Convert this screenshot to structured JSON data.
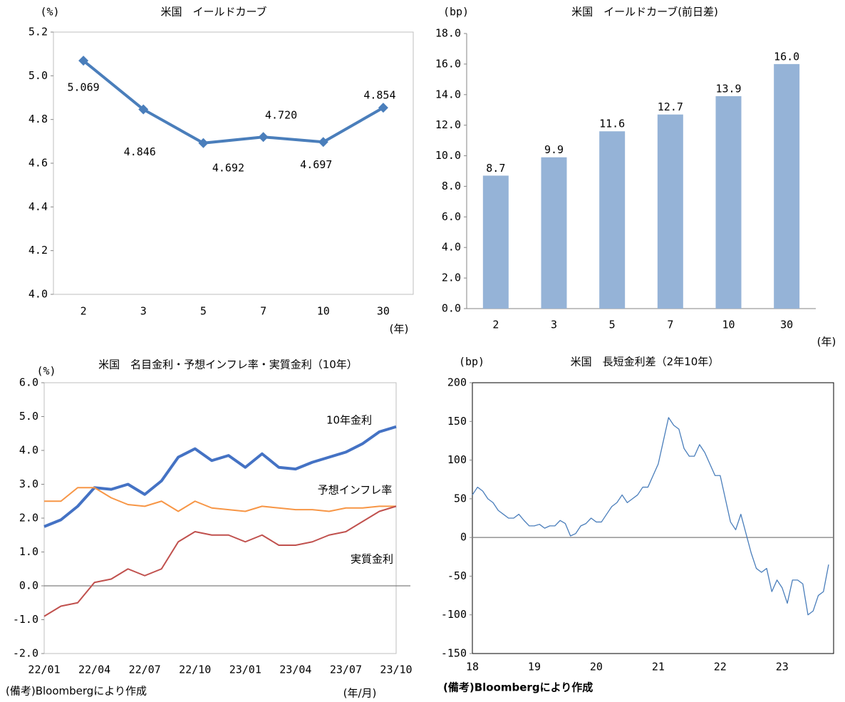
{
  "chart_data": [
    {
      "type": "line",
      "title": "米国　イールドカーブ",
      "y_unit": "(%)",
      "x_unit": "(年)",
      "categories": [
        "2",
        "3",
        "5",
        "7",
        "10",
        "30"
      ],
      "values": [
        5.069,
        4.846,
        4.692,
        4.72,
        4.697,
        4.854
      ],
      "value_labels": [
        "5.069",
        "4.846",
        "4.692",
        "4.720",
        "4.697",
        "4.854"
      ],
      "color": "#4a7ebb",
      "marker": "diamond",
      "ylim": [
        4.0,
        5.2
      ],
      "yticks": [
        {
          "value": 4,
          "label": "4.0"
        },
        4.2,
        4.4,
        4.6,
        4.8,
        {
          "value": 5,
          "label": "5.0"
        },
        5.2
      ]
    },
    {
      "type": "bar",
      "title": "米国　イールドカーブ(前日差)",
      "y_unit": "(bp)",
      "x_unit": "(年)",
      "categories": [
        "2",
        "3",
        "5",
        "7",
        "10",
        "30"
      ],
      "values": [
        8.7,
        9.9,
        11.6,
        12.7,
        13.9,
        16
      ],
      "value_labels": [
        "8.7",
        "9.9",
        "11.6",
        "12.7",
        "13.9",
        "16.0"
      ],
      "color": "#95b3d7",
      "ylim": [
        0,
        18
      ],
      "yticks": [
        {
          "value": 0,
          "label": "0.0"
        },
        {
          "value": 2,
          "label": "2.0"
        },
        {
          "value": 4,
          "label": "4.0"
        },
        {
          "value": 6,
          "label": "6.0"
        },
        {
          "value": 8,
          "label": "8.0"
        },
        {
          "value": 10,
          "label": "10.0"
        },
        {
          "value": 12,
          "label": "12.0"
        },
        {
          "value": 14,
          "label": "14.0"
        },
        {
          "value": 16,
          "label": "16.0"
        },
        {
          "value": 18,
          "label": "18.0"
        }
      ]
    },
    {
      "type": "line",
      "title": "米国　名目金利・予想インフレ率・実質金利（10年）",
      "y_unit": "(%)",
      "x_unit": "(年/月)",
      "note": "(備考)Bloombergにより作成",
      "categories": [
        "22/01",
        null,
        null,
        "22/04",
        null,
        null,
        "22/07",
        null,
        null,
        "22/10",
        null,
        null,
        "23/01",
        null,
        null,
        "23/04",
        null,
        null,
        "23/07",
        null,
        null,
        "23/10"
      ],
      "series": [
        {
          "name": "10年金利",
          "color": "#4472c4",
          "values": [
            1.75,
            1.95,
            2.35,
            2.9,
            2.85,
            3.0,
            2.7,
            3.1,
            3.8,
            4.05,
            3.7,
            3.85,
            3.5,
            3.9,
            3.5,
            3.45,
            3.65,
            3.8,
            3.95,
            4.2,
            4.55,
            4.7
          ]
        },
        {
          "name": "予想インフレ率",
          "color": "#f79646",
          "values": [
            2.5,
            2.5,
            2.9,
            2.9,
            2.6,
            2.4,
            2.35,
            2.5,
            2.2,
            2.5,
            2.3,
            2.25,
            2.2,
            2.35,
            2.3,
            2.25,
            2.25,
            2.2,
            2.3,
            2.3,
            2.35,
            2.35
          ]
        },
        {
          "name": "実質金利",
          "color": "#c0504d",
          "values": [
            -0.9,
            -0.6,
            -0.5,
            0.1,
            0.2,
            0.5,
            0.3,
            0.5,
            1.3,
            1.6,
            1.5,
            1.5,
            1.3,
            1.5,
            1.2,
            1.2,
            1.3,
            1.5,
            1.6,
            1.9,
            2.2,
            2.35
          ]
        }
      ],
      "zero_line": true,
      "ylim": [
        -2,
        6
      ],
      "yticks": [
        {
          "value": -2,
          "label": "-2.0"
        },
        {
          "value": -1,
          "label": "-1.0"
        },
        {
          "value": 0,
          "label": "0.0"
        },
        {
          "value": 1,
          "label": "1.0"
        },
        {
          "value": 2,
          "label": "2.0"
        },
        {
          "value": 3,
          "label": "3.0"
        },
        {
          "value": 4,
          "label": "4.0"
        },
        {
          "value": 5,
          "label": "5.0"
        },
        {
          "value": 6,
          "label": "6.0"
        }
      ]
    },
    {
      "type": "line",
      "title": "米国　長短金利差（2年10年）",
      "y_unit": "(bp)",
      "note": "(備考)Bloombergにより作成",
      "categories": [
        "18",
        null,
        null,
        null,
        null,
        null,
        null,
        null,
        null,
        null,
        null,
        null,
        "19",
        null,
        null,
        null,
        null,
        null,
        null,
        null,
        null,
        null,
        null,
        null,
        "20",
        null,
        null,
        null,
        null,
        null,
        null,
        null,
        null,
        null,
        null,
        null,
        "21",
        null,
        null,
        null,
        null,
        null,
        null,
        null,
        null,
        null,
        null,
        null,
        "22",
        null,
        null,
        null,
        null,
        null,
        null,
        null,
        null,
        null,
        null,
        null,
        "23",
        null,
        null,
        null,
        null,
        null,
        null,
        null,
        null,
        null
      ],
      "values": [
        55,
        65,
        60,
        50,
        45,
        35,
        30,
        25,
        25,
        30,
        22,
        15,
        15,
        17,
        12,
        15,
        15,
        22,
        18,
        2,
        5,
        15,
        18,
        25,
        20,
        20,
        30,
        40,
        45,
        55,
        45,
        50,
        55,
        65,
        65,
        80,
        95,
        125,
        155,
        145,
        140,
        115,
        105,
        105,
        120,
        110,
        95,
        80,
        80,
        50,
        20,
        10,
        30,
        5,
        -20,
        -40,
        -45,
        -40,
        -70,
        -55,
        -65,
        -85,
        -55,
        -55,
        -60,
        -100,
        -95,
        -75,
        -70,
        -35
      ],
      "color": "#4a7ebb",
      "zero_line": true,
      "ylim": [
        -150,
        200
      ],
      "yticks": [
        -150,
        -100,
        -50,
        0,
        50,
        100,
        150,
        200
      ]
    }
  ]
}
